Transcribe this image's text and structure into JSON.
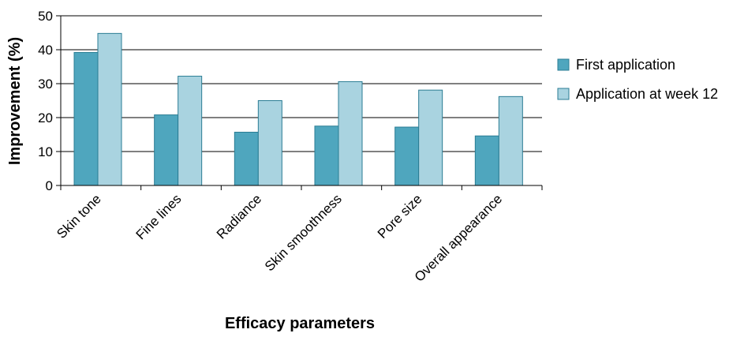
{
  "chart_data": {
    "type": "bar",
    "title": "",
    "xlabel": "Efficacy parameters",
    "ylabel": "Improvement (%)",
    "ylim": [
      0,
      50
    ],
    "yticks": [
      0,
      10,
      20,
      30,
      40,
      50
    ],
    "grid": "horizontal",
    "legend_position": "right",
    "categories": [
      "Skin tone",
      "Fine lines",
      "Radiance",
      "Skin smoothness",
      "Pore size",
      "Overall appearance"
    ],
    "series": [
      {
        "name": "First application",
        "color": "#4fa6be",
        "values": [
          39.2,
          20.8,
          15.7,
          17.5,
          17.2,
          14.6
        ]
      },
      {
        "name": "Application at week 12",
        "color": "#a9d3e0",
        "values": [
          44.8,
          32.2,
          25.0,
          30.6,
          28.1,
          26.2
        ]
      }
    ],
    "bar_edge_color": "#2b7d94"
  }
}
